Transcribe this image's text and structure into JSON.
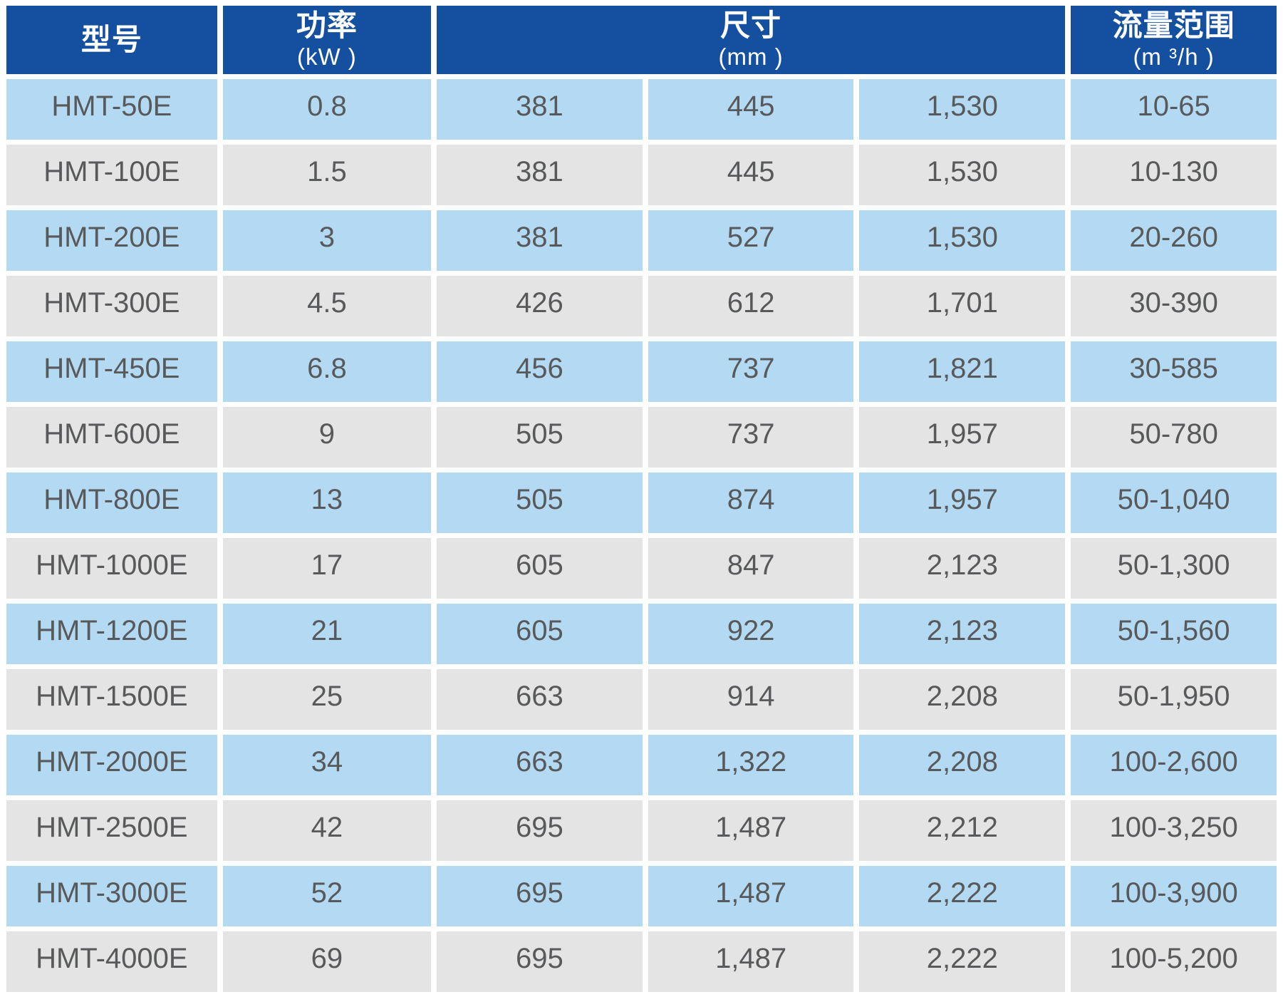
{
  "header": {
    "col_model": {
      "title": "型号",
      "unit": ""
    },
    "col_power": {
      "title": "功率",
      "unit": "(kW )"
    },
    "col_dimensions": {
      "title": "尺寸",
      "unit": "(mm )"
    },
    "col_flow": {
      "title": "流量范围",
      "unit": "(m ³/h )"
    }
  },
  "rows": [
    [
      "HMT-50E",
      "0.8",
      "381",
      "445",
      "1,530",
      "10-65"
    ],
    [
      "HMT-100E",
      "1.5",
      "381",
      "445",
      "1,530",
      "10-130"
    ],
    [
      "HMT-200E",
      "3",
      "381",
      "527",
      "1,530",
      "20-260"
    ],
    [
      "HMT-300E",
      "4.5",
      "426",
      "612",
      "1,701",
      "30-390"
    ],
    [
      "HMT-450E",
      "6.8",
      "456",
      "737",
      "1,821",
      "30-585"
    ],
    [
      "HMT-600E",
      "9",
      "505",
      "737",
      "1,957",
      "50-780"
    ],
    [
      "HMT-800E",
      "13",
      "505",
      "874",
      "1,957",
      "50-1,040"
    ],
    [
      "HMT-1000E",
      "17",
      "605",
      "847",
      "2,123",
      "50-1,300"
    ],
    [
      "HMT-1200E",
      "21",
      "605",
      "922",
      "2,123",
      "50-1,560"
    ],
    [
      "HMT-1500E",
      "25",
      "663",
      "914",
      "2,208",
      "50-1,950"
    ],
    [
      "HMT-2000E",
      "34",
      "663",
      "1,322",
      "2,208",
      "100-2,600"
    ],
    [
      "HMT-2500E",
      "42",
      "695",
      "1,487",
      "2,212",
      "100-3,250"
    ],
    [
      "HMT-3000E",
      "52",
      "695",
      "1,487",
      "2,222",
      "100-3,900"
    ],
    [
      "HMT-4000E",
      "69",
      "695",
      "1,487",
      "2,222",
      "100-5,200"
    ]
  ],
  "colors": {
    "header_bg": "#154f9f",
    "header_text": "#ffffff",
    "row_blue": "#b4daf3",
    "row_gray": "#e4e4e4",
    "cell_text": "#58595b",
    "background": "#ffffff"
  }
}
